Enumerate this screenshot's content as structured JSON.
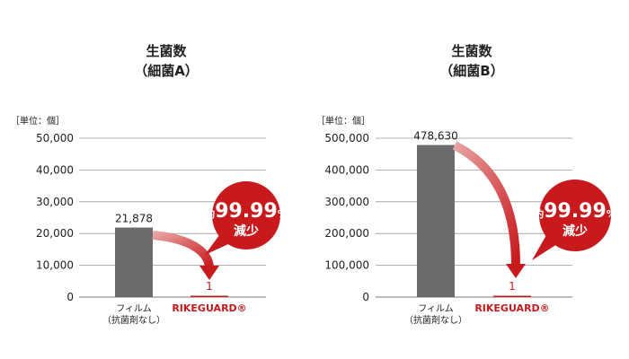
{
  "chart_data": [
    {
      "type": "bar",
      "title": [
        "生菌数",
        "（細菌A）"
      ],
      "unit_label": "［単位：個］",
      "categories": [
        [
          "フィルム",
          "（抗菌剤なし）"
        ],
        [
          "RIKEGUARD®"
        ]
      ],
      "values": [
        21878,
        1
      ],
      "value_labels": [
        "21,878",
        "1"
      ],
      "ylim": [
        0,
        50000
      ],
      "yticks": [
        0,
        10000,
        20000,
        30000,
        40000,
        50000
      ],
      "ytick_labels": [
        "0",
        "10,000",
        "20,000",
        "30,000",
        "40,000",
        "50,000"
      ],
      "grid": true,
      "callout": {
        "prefix": "約",
        "value": "99.99",
        "suffix": "%",
        "label": "減少"
      }
    },
    {
      "type": "bar",
      "title": [
        "生菌数",
        "（細菌B）"
      ],
      "unit_label": "［単位：個］",
      "categories": [
        [
          "フィルム",
          "（抗菌剤なし）"
        ],
        [
          "RIKEGUARD®"
        ]
      ],
      "values": [
        478630,
        1
      ],
      "value_labels": [
        "478,630",
        "1"
      ],
      "ylim": [
        0,
        500000
      ],
      "yticks": [
        0,
        100000,
        200000,
        300000,
        400000,
        500000
      ],
      "ytick_labels": [
        "0",
        "100,000",
        "200,000",
        "300,000",
        "400,000",
        "500,000"
      ],
      "grid": true,
      "callout": {
        "prefix": "約",
        "value": "99.99",
        "suffix": "%",
        "label": "減少"
      }
    }
  ],
  "colors": {
    "film_bar": "#6b6b6b",
    "rikeguard_bar": "#c8191c",
    "arrow": "#c8191c",
    "callout": "#c8191c",
    "grid": "#999999"
  }
}
